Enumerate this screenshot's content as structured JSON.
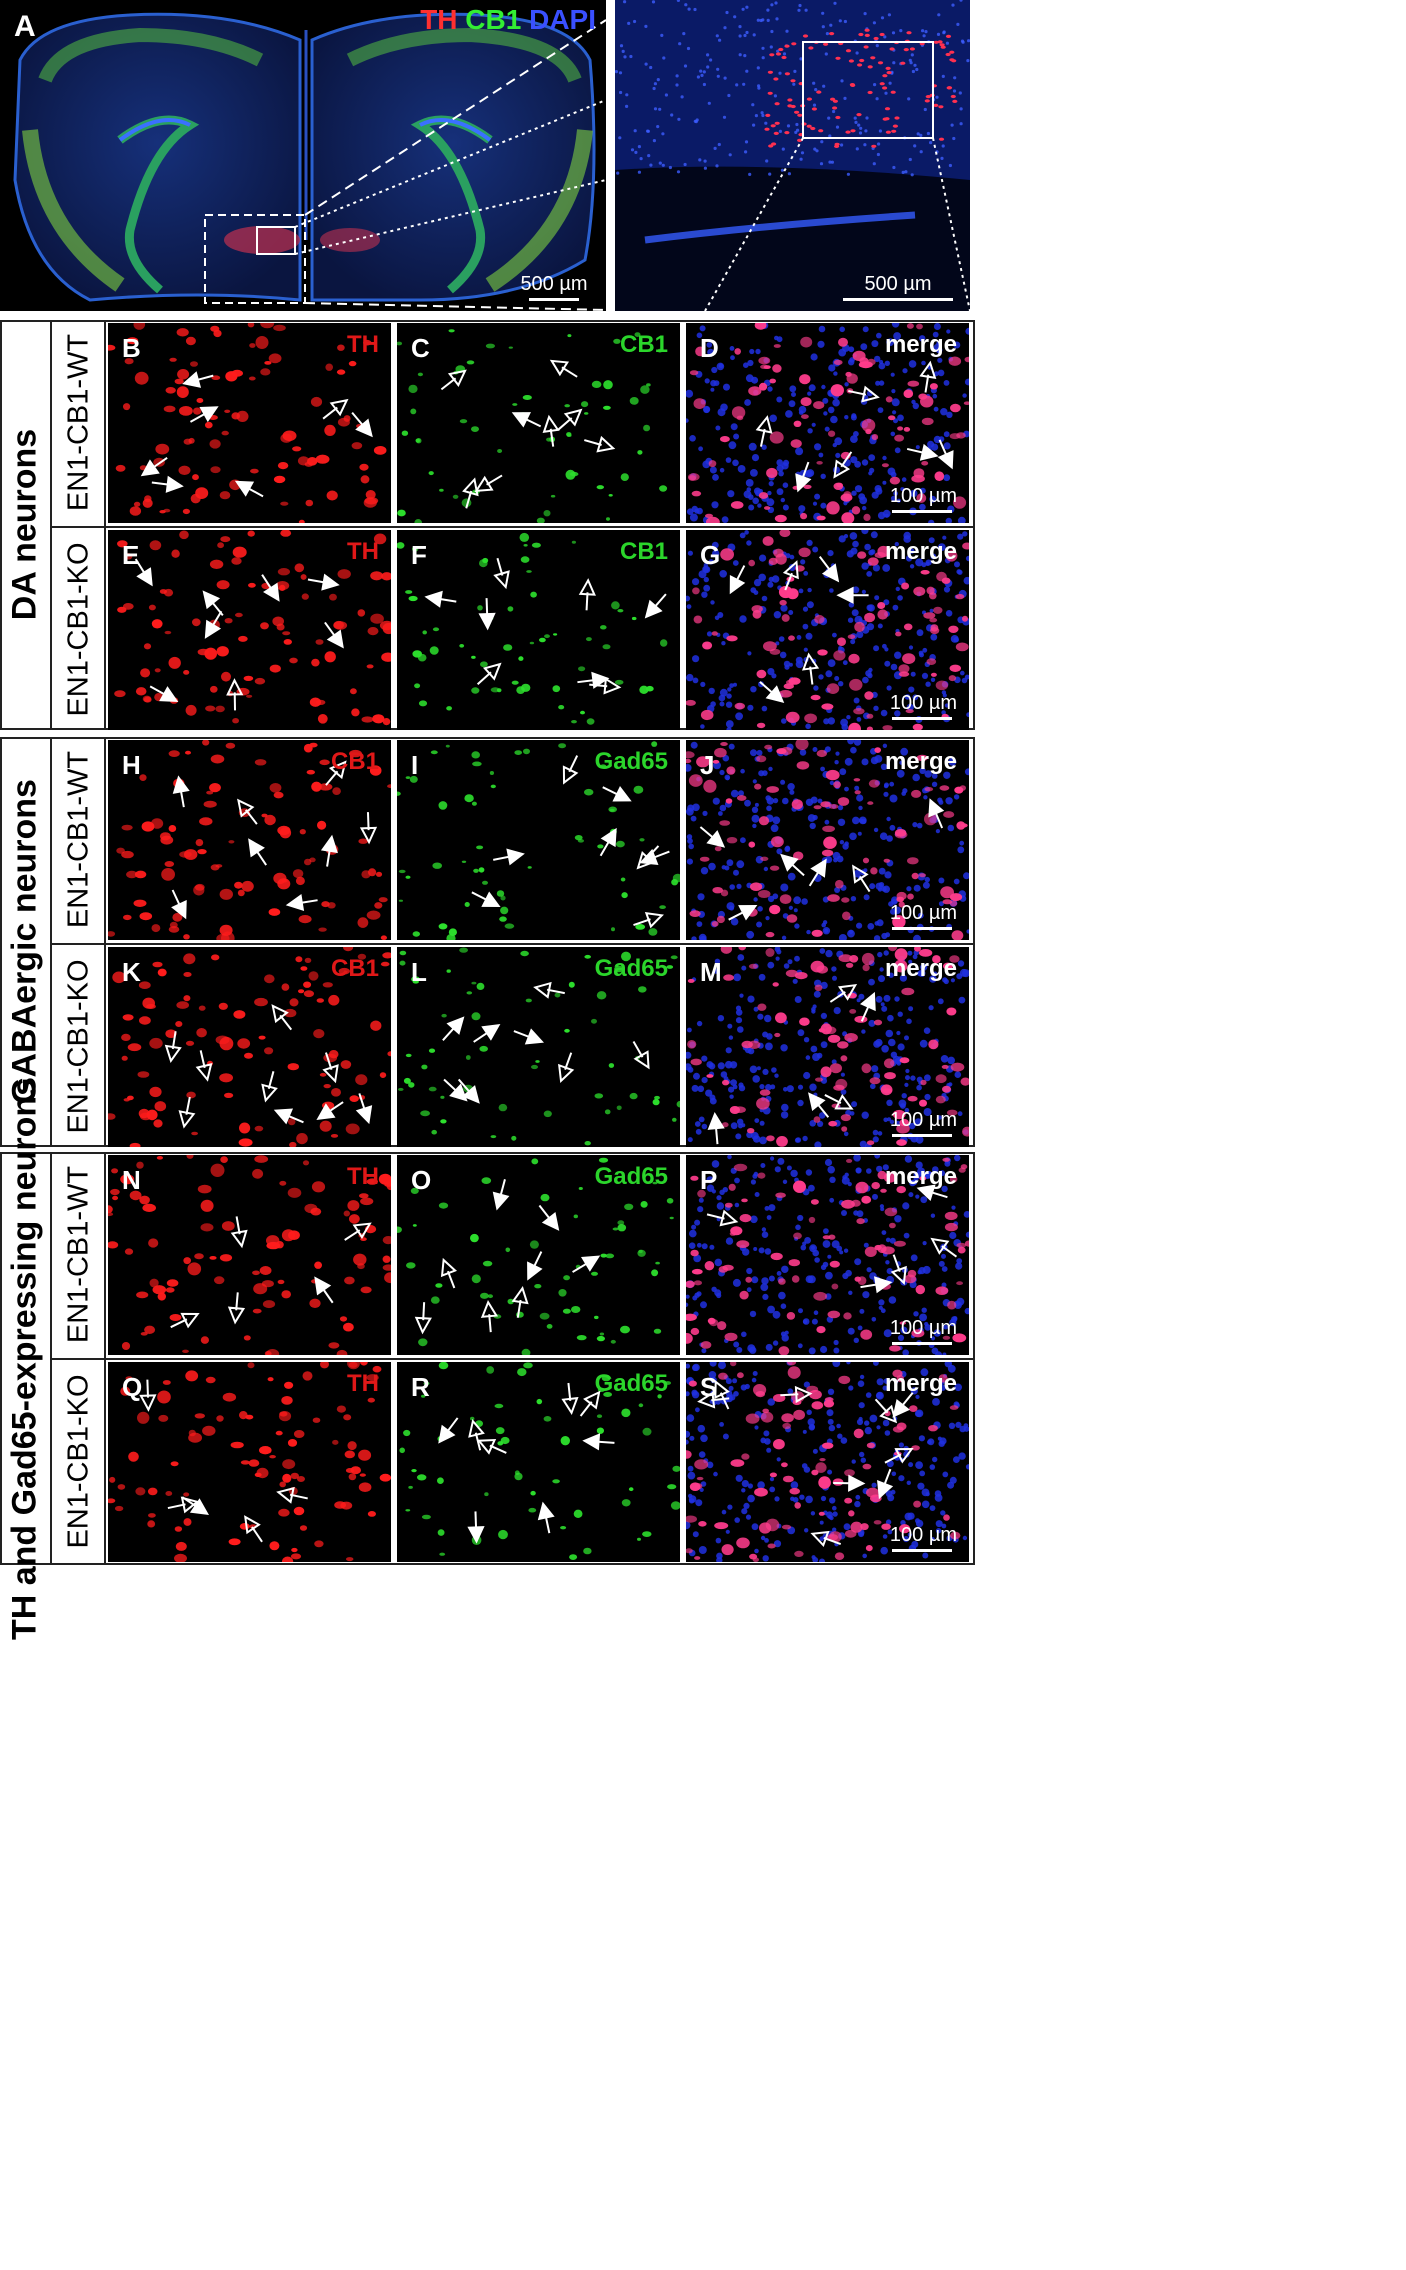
{
  "panel_A": {
    "label": "A",
    "legend": {
      "th": "TH",
      "cb1": "CB1",
      "dapi": "DAPI"
    },
    "scale_left": "500 µm",
    "scale_right": "500 µm"
  },
  "groups": [
    {
      "title": "DA neurons",
      "rows": [
        {
          "genotype": "EN1-CB1-WT",
          "panels": [
            {
              "label": "B",
              "stain": "TH",
              "kind": "red"
            },
            {
              "label": "C",
              "stain": "CB1",
              "kind": "green"
            },
            {
              "label": "D",
              "stain": "merge",
              "kind": "merge",
              "scale": "100 µm"
            }
          ]
        },
        {
          "genotype": "EN1-CB1-KO",
          "panels": [
            {
              "label": "E",
              "stain": "TH",
              "kind": "red"
            },
            {
              "label": "F",
              "stain": "CB1",
              "kind": "green"
            },
            {
              "label": "G",
              "stain": "merge",
              "kind": "merge",
              "scale": "100 µm"
            }
          ]
        }
      ]
    },
    {
      "title": "GABAergic neurons",
      "rows": [
        {
          "genotype": "EN1-CB1-WT",
          "panels": [
            {
              "label": "H",
              "stain": "CB1",
              "kind": "red"
            },
            {
              "label": "I",
              "stain": "Gad65",
              "kind": "green"
            },
            {
              "label": "J",
              "stain": "merge",
              "kind": "merge",
              "scale": "100 µm"
            }
          ]
        },
        {
          "genotype": "EN1-CB1-KO",
          "panels": [
            {
              "label": "K",
              "stain": "CB1",
              "kind": "red"
            },
            {
              "label": "L",
              "stain": "Gad65",
              "kind": "green"
            },
            {
              "label": "M",
              "stain": "merge",
              "kind": "merge",
              "scale": "100 µm"
            }
          ]
        }
      ]
    },
    {
      "title": "TH and Gad65-expressing neurons",
      "rows": [
        {
          "genotype": "EN1-CB1-WT",
          "panels": [
            {
              "label": "N",
              "stain": "TH",
              "kind": "red"
            },
            {
              "label": "O",
              "stain": "Gad65",
              "kind": "green"
            },
            {
              "label": "P",
              "stain": "merge",
              "kind": "merge",
              "scale": "100 µm"
            }
          ]
        },
        {
          "genotype": "EN1-CB1-KO",
          "panels": [
            {
              "label": "Q",
              "stain": "TH",
              "kind": "red"
            },
            {
              "label": "R",
              "stain": "Gad65",
              "kind": "green"
            },
            {
              "label": "S",
              "stain": "merge",
              "kind": "merge",
              "scale": "100 µm"
            }
          ]
        }
      ]
    }
  ],
  "colors": {
    "th": "#ff2a2a",
    "cb1": "#33dd33",
    "dapi": "#2a3cff",
    "stain_red": "#e01818",
    "stain_green": "#2bd52b"
  }
}
